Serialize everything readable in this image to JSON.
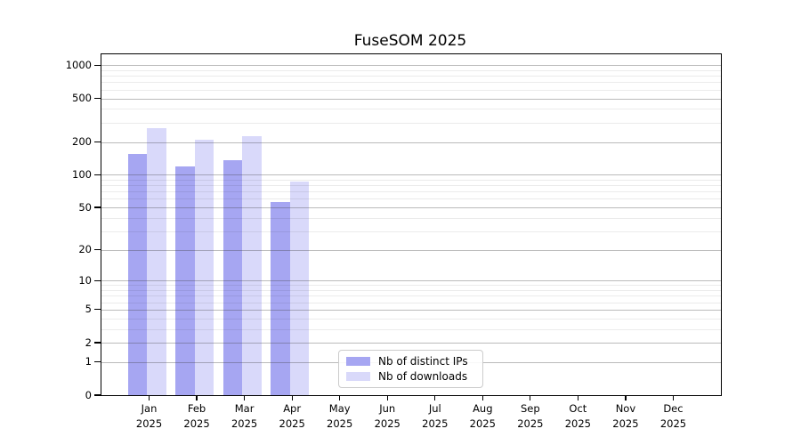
{
  "chart_data": {
    "type": "bar",
    "title": "FuseSOM 2025",
    "categories": [
      "Jan 2025",
      "Feb 2025",
      "Mar 2025",
      "Apr 2025",
      "May 2025",
      "Jun 2025",
      "Jul 2025",
      "Aug 2025",
      "Sep 2025",
      "Oct 2025",
      "Nov 2025",
      "Dec 2025"
    ],
    "series": [
      {
        "name": "Nb of distinct IPs",
        "color": "#a6a6f2",
        "values": [
          155,
          120,
          136,
          56,
          0,
          0,
          0,
          0,
          0,
          0,
          0,
          0
        ]
      },
      {
        "name": "Nb of downloads",
        "color": "#d9d9fa",
        "values": [
          266,
          211,
          227,
          86,
          0,
          0,
          0,
          0,
          0,
          0,
          0,
          0
        ]
      }
    ],
    "yscale": "log1p",
    "ylim": [
      0,
      1260
    ],
    "y_ticks": [
      0,
      1,
      2,
      5,
      10,
      20,
      50,
      100,
      200,
      500,
      1000
    ],
    "y_minor_ticks": [
      3,
      4,
      6,
      7,
      8,
      9,
      30,
      40,
      60,
      70,
      80,
      90,
      300,
      400,
      600,
      700,
      800,
      900
    ],
    "xlabel": "",
    "ylabel": "",
    "grid": true,
    "legend_position": "lower center-left"
  }
}
